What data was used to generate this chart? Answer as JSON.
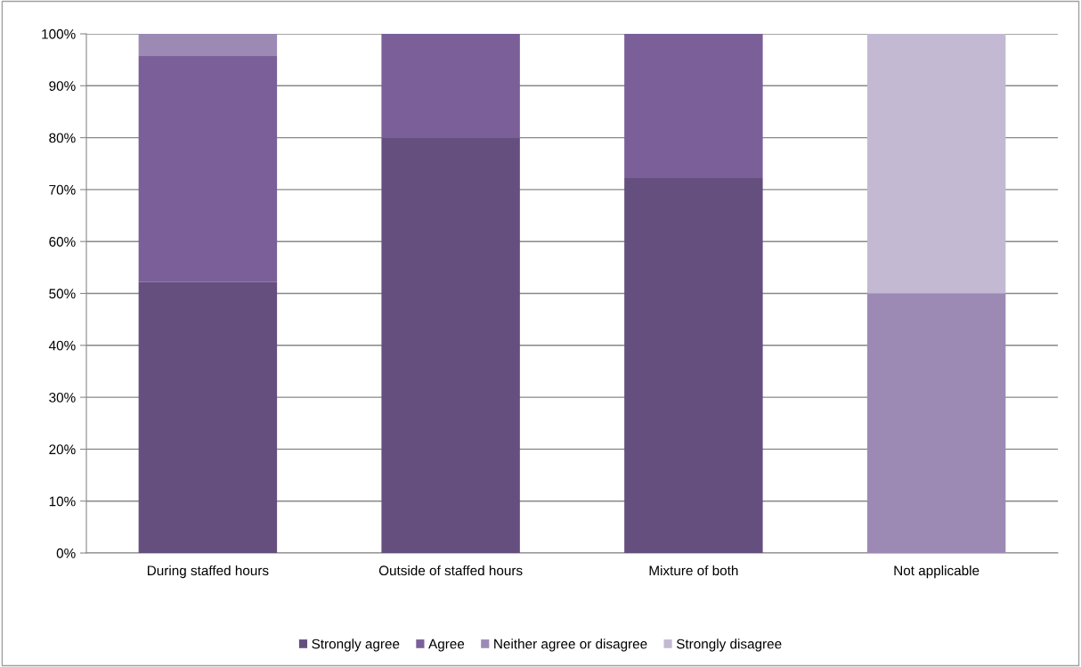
{
  "chart_data": {
    "type": "bar",
    "stacked": true,
    "categories": [
      "During staffed hours",
      "Outside of staffed hours",
      "Mixture of both",
      "Not applicable"
    ],
    "series": [
      {
        "name": "Strongly agree",
        "color": "#654f7e",
        "values": [
          52.2,
          80,
          72.2,
          0
        ]
      },
      {
        "name": "Agree",
        "color": "#7a5f99",
        "values": [
          43.5,
          20,
          27.8,
          0
        ]
      },
      {
        "name": "Neither agree or disagree",
        "color": "#9c8ab5",
        "values": [
          4.3,
          0,
          0,
          50
        ]
      },
      {
        "name": "Strongly disagree",
        "color": "#c3b9d3",
        "values": [
          0,
          0,
          0,
          50
        ]
      }
    ],
    "ylim": [
      0,
      100
    ],
    "yticks": [
      {
        "value": 0,
        "label": "0%"
      },
      {
        "value": 10,
        "label": "10%"
      },
      {
        "value": 20,
        "label": "20%"
      },
      {
        "value": 30,
        "label": "30%"
      },
      {
        "value": 40,
        "label": "40%"
      },
      {
        "value": 50,
        "label": "50%"
      },
      {
        "value": 60,
        "label": "60%"
      },
      {
        "value": 70,
        "label": "70%"
      },
      {
        "value": 80,
        "label": "80%"
      },
      {
        "value": 90,
        "label": "90%"
      },
      {
        "value": 100,
        "label": "100%"
      }
    ],
    "grid": "y",
    "legend": "bottom"
  }
}
